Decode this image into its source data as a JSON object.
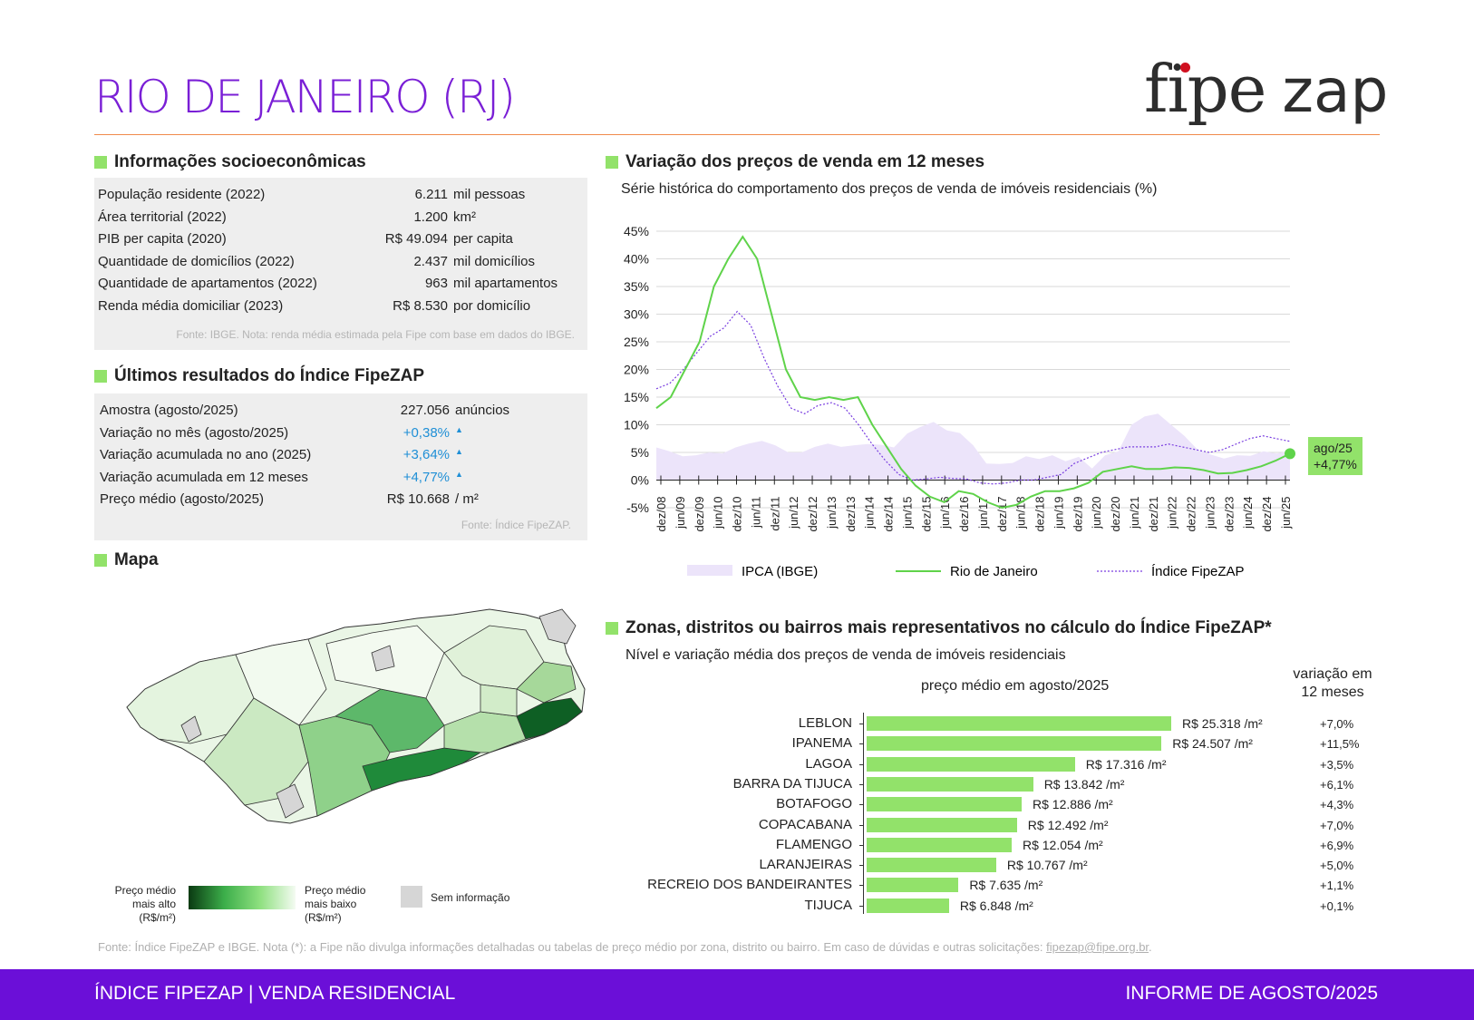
{
  "header": {
    "title": "RIO DE JANEIRO (RJ)",
    "logo_fipe": "fipe",
    "logo_zap": "zap"
  },
  "socio": {
    "heading": "Informações socioeconômicas",
    "rows": [
      {
        "label": "População residente (2022)",
        "value": "6.211",
        "unit": "mil pessoas"
      },
      {
        "label": "Área territorial (2022)",
        "value": "1.200",
        "unit": "km²"
      },
      {
        "label": "PIB per capita (2020)",
        "value": "R$ 49.094",
        "unit": "per capita"
      },
      {
        "label": "Quantidade de domicílios (2022)",
        "value": "2.437",
        "unit": "mil domicílios"
      },
      {
        "label": "Quantidade de apartamentos (2022)",
        "value": "963",
        "unit": "mil apartamentos"
      },
      {
        "label": "Renda média domiciliar (2023)",
        "value": "R$ 8.530",
        "unit": "por domicílio"
      }
    ],
    "source": "Fonte: IBGE. Nota: renda média estimada pela Fipe com base em dados do IBGE."
  },
  "results": {
    "heading": "Últimos resultados do Índice FipeZAP",
    "rows": [
      {
        "label": "Amostra (agosto/2025)",
        "value": "227.056",
        "unit": "anúncios",
        "arrow": ""
      },
      {
        "label": "Variação no mês (agosto/2025)",
        "value": "+0,38%",
        "unit": "",
        "arrow": "▲"
      },
      {
        "label": "Variação acumulada no ano (2025)",
        "value": "+3,64%",
        "unit": "",
        "arrow": "▲"
      },
      {
        "label": "Variação acumulada em 12 meses",
        "value": "+4,77%",
        "unit": "",
        "arrow": "▲"
      },
      {
        "label": "Preço médio (agosto/2025)",
        "value": "R$ 10.668",
        "unit": "/ m²",
        "arrow": ""
      }
    ],
    "source": "Fonte: Índice FipeZAP."
  },
  "map": {
    "heading": "Mapa",
    "legend_high": "Preço médio mais alto (R$/m²)",
    "legend_low": "Preço médio mais baixo (R$/m²)",
    "legend_none": "Sem informação"
  },
  "line_chart": {
    "heading": "Variação dos preços de venda em 12 meses",
    "subtitle": "Série histórica do comportamento dos preços de venda de imóveis residenciais (%)",
    "end_label_1": "ago/25",
    "end_label_2": "+4,77%"
  },
  "bar_chart": {
    "heading": "Zonas, distritos ou bairros mais representativos no cálculo do Índice FipeZAP*",
    "subtitle": "Nível e variação média dos preços de venda de imóveis residenciais",
    "col_price": "preço médio em agosto/2025",
    "col_var": "variação em 12 meses"
  },
  "footnote": {
    "text": "Fonte: Índice FipeZAP e IBGE. Nota (*): a Fipe não divulga informações detalhadas ou tabelas de preço médio por zona, distrito ou bairro. Em caso de dúvidas e outras solicitações: ",
    "email": "fipezap@fipe.org.br",
    "end": "."
  },
  "footer": {
    "left": "ÍNDICE FIPEZAP | VENDA RESIDENCIAL",
    "right": "INFORME DE AGOSTO/2025"
  },
  "colors": {
    "purple": "#6b0fd8",
    "green": "#92e26a",
    "rio_line": "#5fd34a",
    "fipezap_line": "#7a3fe0",
    "ipca_area": "#ece4fa"
  },
  "chart_data": [
    {
      "type": "line",
      "ylim": [
        -5,
        45
      ],
      "yticks": [
        "45%",
        "40%",
        "35%",
        "30%",
        "25%",
        "20%",
        "15%",
        "10%",
        "5%",
        "0%",
        "-5%"
      ],
      "yvalues": [
        45,
        40,
        35,
        30,
        25,
        20,
        15,
        10,
        5,
        0,
        -5
      ],
      "x_labels": [
        "dez/08",
        "jun/09",
        "dez/09",
        "jun/10",
        "dez/10",
        "jun/11",
        "dez/11",
        "jun/12",
        "dez/12",
        "jun/13",
        "dez/13",
        "jun/14",
        "dez/14",
        "jun/15",
        "dez/15",
        "jun/16",
        "dez/16",
        "jun/17",
        "dez/17",
        "jun/18",
        "dez/18",
        "jun/19",
        "dez/19",
        "jun/20",
        "dez/20",
        "jun/21",
        "dez/21",
        "jun/22",
        "dez/22",
        "jun/23",
        "dez/23",
        "jun/24",
        "dez/24",
        "jun/25"
      ],
      "series": [
        {
          "name": "IPCA (IBGE)",
          "kind": "area",
          "values": [
            5.9,
            5.2,
            4.3,
            4.5,
            5.0,
            4.8,
            5.9,
            6.6,
            7.1,
            6.3,
            5.0,
            5.0,
            6.0,
            6.6,
            6.0,
            6.3,
            6.5,
            6.4,
            5.9,
            8.4,
            9.6,
            10.5,
            9.0,
            8.5,
            6.3,
            3.0,
            2.9,
            3.1,
            4.3,
            3.8,
            4.5,
            3.4,
            4.2,
            2.1,
            4.5,
            5.2,
            10.0,
            11.5,
            12.0,
            10.0,
            8.0,
            5.5,
            4.6,
            3.9,
            4.5,
            4.4,
            5.2,
            4.8,
            5.3
          ]
        },
        {
          "name": "Rio de Janeiro",
          "kind": "line",
          "values": [
            13.0,
            15.0,
            20.0,
            25.0,
            35.0,
            40.0,
            44.0,
            40.0,
            30.0,
            20.0,
            15.0,
            14.5,
            15.0,
            14.5,
            15.0,
            10.0,
            6.0,
            2.0,
            -1.0,
            -3.0,
            -4.0,
            -2.0,
            -2.5,
            -4.0,
            -5.0,
            -4.5,
            -3.0,
            -2.0,
            -2.0,
            -1.5,
            -0.5,
            1.5,
            2.0,
            2.5,
            2.0,
            2.0,
            2.3,
            2.2,
            1.8,
            1.2,
            1.3,
            1.8,
            2.5,
            3.5,
            4.77
          ]
        },
        {
          "name": "Índice FipeZAP",
          "kind": "line",
          "values": [
            16.5,
            17.5,
            20.0,
            23.0,
            26.0,
            27.5,
            30.5,
            28.0,
            22.0,
            17.0,
            13.0,
            12.0,
            13.5,
            14.0,
            13.0,
            10.0,
            6.5,
            3.5,
            1.0,
            0.0,
            0.2,
            0.5,
            0.3,
            0.2,
            -0.5,
            -0.7,
            -0.5,
            0.0,
            0.0,
            0.5,
            1.0,
            3.0,
            4.0,
            5.0,
            5.5,
            6.0,
            6.0,
            6.0,
            6.5,
            6.0,
            5.5,
            5.0,
            5.5,
            6.5,
            7.5,
            8.0,
            7.5,
            7.0
          ]
        }
      ]
    },
    {
      "type": "bar",
      "categories": [
        "LEBLON",
        "IPANEMA",
        "LAGOA",
        "BARRA DA TIJUCA",
        "BOTAFOGO",
        "COPACABANA",
        "FLAMENGO",
        "LARANJEIRAS",
        "RECREIO DOS BANDEIRANTES",
        "TIJUCA"
      ],
      "values": [
        25318,
        24507,
        17316,
        13842,
        12886,
        12492,
        12054,
        10767,
        7635,
        6848
      ],
      "value_labels": [
        "R$ 25.318 /m²",
        "R$ 24.507 /m²",
        "R$ 17.316 /m²",
        "R$ 13.842 /m²",
        "R$ 12.886 /m²",
        "R$ 12.492 /m²",
        "R$ 12.054 /m²",
        "R$ 10.767 /m²",
        "R$ 7.635 /m²",
        "R$ 6.848 /m²"
      ],
      "variation": [
        "+7,0%",
        "+11,5%",
        "+3,5%",
        "+6,1%",
        "+4,3%",
        "+7,0%",
        "+6,9%",
        "+5,0%",
        "+1,1%",
        "+0,1%"
      ]
    }
  ]
}
